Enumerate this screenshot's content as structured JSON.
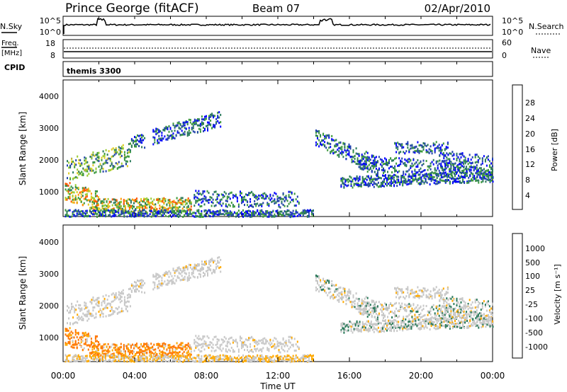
{
  "header": {
    "title": "Prince George (fitACF)",
    "beam": "Beam 07",
    "date": "02/Apr/2010"
  },
  "top_panels": {
    "nsky_label": "N.Sky",
    "nsky_ticks": [
      "10^5",
      "10^0"
    ],
    "nsearch_label": "N.Search",
    "nsearch_ticks": [
      "10^5",
      "10^0"
    ],
    "freq_label": "Freq.",
    "freq_unit": "[MHz]",
    "freq_ticks": [
      "18",
      "8"
    ],
    "nave_label": "Nave",
    "nave_ticks": [
      "60",
      "0"
    ],
    "cpid_label": "CPID",
    "cpid_value": "themis 3300"
  },
  "colors": {
    "power_scale": [
      "#0000ff",
      "#2244aa",
      "#2a7a5a",
      "#3c9a3c",
      "#9acc33",
      "#ddcc22",
      "#ff9900",
      "#ff5500",
      "#ee0000"
    ],
    "velocity_scale": [
      "#0000ff",
      "#224499",
      "#2a7a5a",
      "#33bb33",
      "#c8c8c8",
      "#ffaa00",
      "#ff7700",
      "#ff3300",
      "#ee0000"
    ]
  },
  "chart_data": [
    {
      "type": "heatmap",
      "name": "power",
      "ylabel": "Slant Range [km]",
      "y_ticks": [
        "4000",
        "3000",
        "2000",
        "1000"
      ],
      "ylim": [
        200,
        4500
      ],
      "colorbar_label": "Power [dB]",
      "colorbar_ticks": [
        "28",
        "24",
        "20",
        "16",
        "12",
        "8",
        "4"
      ],
      "colorbar_range": [
        0,
        32
      ]
    },
    {
      "type": "heatmap",
      "name": "velocity",
      "ylabel": "Slant Range [km]",
      "y_ticks": [
        "4000",
        "3000",
        "2000",
        "1000"
      ],
      "ylim": [
        200,
        4500
      ],
      "colorbar_label": "Velocity [m s⁻¹]",
      "colorbar_ticks": [
        "1000",
        "500",
        "100",
        "25",
        "-25",
        "-100",
        "-500",
        "-1000"
      ]
    }
  ],
  "xaxis": {
    "label": "Time UT",
    "ticks": [
      "00:00",
      "04:00",
      "08:00",
      "12:00",
      "16:00",
      "20:00",
      "00:00"
    ]
  }
}
